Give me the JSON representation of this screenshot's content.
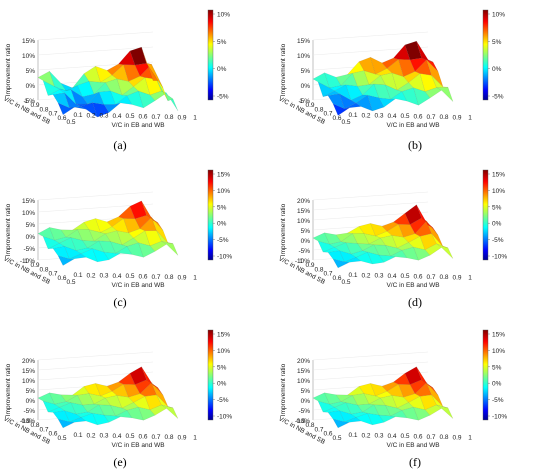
{
  "chart_data": [
    {
      "type": "surface3d",
      "label": "(a)",
      "zlabel": "Improvement ratio",
      "xlabel": "V/C in EB and WB",
      "ylabel": "V/C in NB and SB",
      "z_ticks": [
        "15%",
        "10%",
        "5%",
        "0%",
        "-5%"
      ],
      "x_ticks": [
        "0.1",
        "0.2",
        "0.3",
        "0.4",
        "0.5",
        "0.6",
        "0.7",
        "0.8",
        "0.9",
        "1"
      ],
      "y_ticks": [
        "1",
        "0.9",
        "0.8",
        "0.7",
        "0.6",
        "0.5"
      ],
      "colorbar_ticks": [
        "10%",
        "5%",
        "0%",
        "-5%"
      ],
      "zlim": [
        -5,
        15
      ],
      "clim": [
        -5,
        10
      ],
      "ridge": [
        2.5,
        3,
        1,
        0.5,
        3,
        5,
        6,
        8,
        10,
        12,
        3,
        0
      ]
    },
    {
      "type": "surface3d",
      "label": "(b)",
      "zlabel": "Improvement ratio",
      "xlabel": "V/C in EB and WB",
      "ylabel": "V/C in NB and SB",
      "z_ticks": [
        "15%",
        "10%",
        "5%",
        "0%",
        "-5%"
      ],
      "x_ticks": [
        "0.1",
        "0.2",
        "0.3",
        "0.4",
        "0.5",
        "0.6",
        "0.7",
        "0.8",
        "0.9",
        "1"
      ],
      "y_ticks": [
        "1",
        "0.9",
        "0.8",
        "0.7",
        "0.6",
        "0.5"
      ],
      "colorbar_ticks": [
        "10%",
        "5%",
        "0%",
        "-5%"
      ],
      "zlim": [
        -5,
        15
      ],
      "clim": [
        -5,
        12
      ],
      "ridge": [
        2,
        2.5,
        3,
        5,
        7,
        8,
        8.5,
        10,
        12,
        14,
        10,
        0
      ]
    },
    {
      "type": "surface3d",
      "label": "(c)",
      "zlabel": "Improvement ratio",
      "xlabel": "V/C in EB and WB",
      "ylabel": "V/C in NB and SB",
      "z_ticks": [
        "15%",
        "10%",
        "5%",
        "0%",
        "-5%",
        "-10%"
      ],
      "x_ticks": [
        "0.1",
        "0.2",
        "0.3",
        "0.4",
        "0.5",
        "0.6",
        "0.7",
        "0.8",
        "0.9",
        "1"
      ],
      "y_ticks": [
        "1",
        "0.9",
        "0.8",
        "0.7",
        "0.6",
        "0.5"
      ],
      "colorbar_ticks": [
        "15%",
        "10%",
        "5%",
        "0%",
        "-5%",
        "-10%"
      ],
      "zlim": [
        -10,
        15
      ],
      "clim": [
        -10,
        15
      ],
      "ridge": [
        1,
        2,
        3,
        4,
        5,
        6,
        7,
        9,
        11,
        14,
        8,
        0
      ]
    },
    {
      "type": "surface3d",
      "label": "(d)",
      "zlabel": "Improvement ratio",
      "xlabel": "V/C in EB and WB",
      "ylabel": "V/C in NB and SB",
      "z_ticks": [
        "20%",
        "15%",
        "10%",
        "5%",
        "0%",
        "-5%",
        "-10%"
      ],
      "x_ticks": [
        "0.1",
        "0.2",
        "0.3",
        "0.4",
        "0.5",
        "0.6",
        "0.7",
        "0.8",
        "0.9",
        "1"
      ],
      "y_ticks": [
        "1",
        "0.9",
        "0.8",
        "0.7",
        "0.6",
        "0.5"
      ],
      "colorbar_ticks": [
        "15%",
        "10%",
        "5%",
        "0%",
        "-5%",
        "-10%"
      ],
      "zlim": [
        -10,
        20
      ],
      "clim": [
        -10,
        15
      ],
      "ridge": [
        1,
        2,
        3,
        5,
        6,
        7,
        8,
        10,
        12,
        17,
        9,
        0
      ]
    },
    {
      "type": "surface3d",
      "label": "(e)",
      "zlabel": "Improvement ratio",
      "xlabel": "V/C in EB and WB",
      "ylabel": "V/C in NB and SB",
      "z_ticks": [
        "20%",
        "15%",
        "10%",
        "5%",
        "0%",
        "-5%",
        "-10%"
      ],
      "x_ticks": [
        "0.1",
        "0.2",
        "0.3",
        "0.4",
        "0.5",
        "0.6",
        "0.7",
        "0.8",
        "0.9",
        "1"
      ],
      "y_ticks": [
        "0.9",
        "0.8",
        "0.7",
        "0.6",
        "0.5"
      ],
      "colorbar_ticks": [
        "15%",
        "10%",
        "5%",
        "0%",
        "-5%",
        "-10%"
      ],
      "zlim": [
        -10,
        20
      ],
      "clim": [
        -10,
        15
      ],
      "ridge": [
        1,
        2,
        3,
        4,
        6,
        7,
        8,
        10,
        12,
        16,
        9,
        0
      ]
    },
    {
      "type": "surface3d",
      "label": "(f)",
      "zlabel": "Improvement ratio",
      "xlabel": "V/C in EB and WB",
      "ylabel": "V/C in NB and SB",
      "z_ticks": [
        "20%",
        "15%",
        "10%",
        "5%",
        "0%",
        "-5%",
        "-10%"
      ],
      "x_ticks": [
        "0.1",
        "0.2",
        "0.3",
        "0.4",
        "0.5",
        "0.6",
        "0.7",
        "0.8",
        "0.9",
        "1"
      ],
      "y_ticks": [
        "0.9",
        "0.8",
        "0.7",
        "0.6",
        "0.5"
      ],
      "colorbar_ticks": [
        "15%",
        "10%",
        "5%",
        "0%",
        "-5%",
        "-10%"
      ],
      "zlim": [
        -10,
        20
      ],
      "clim": [
        -10,
        15
      ],
      "ridge": [
        1,
        2,
        3,
        4,
        6,
        7,
        8,
        10,
        12,
        16,
        9,
        0
      ]
    }
  ]
}
